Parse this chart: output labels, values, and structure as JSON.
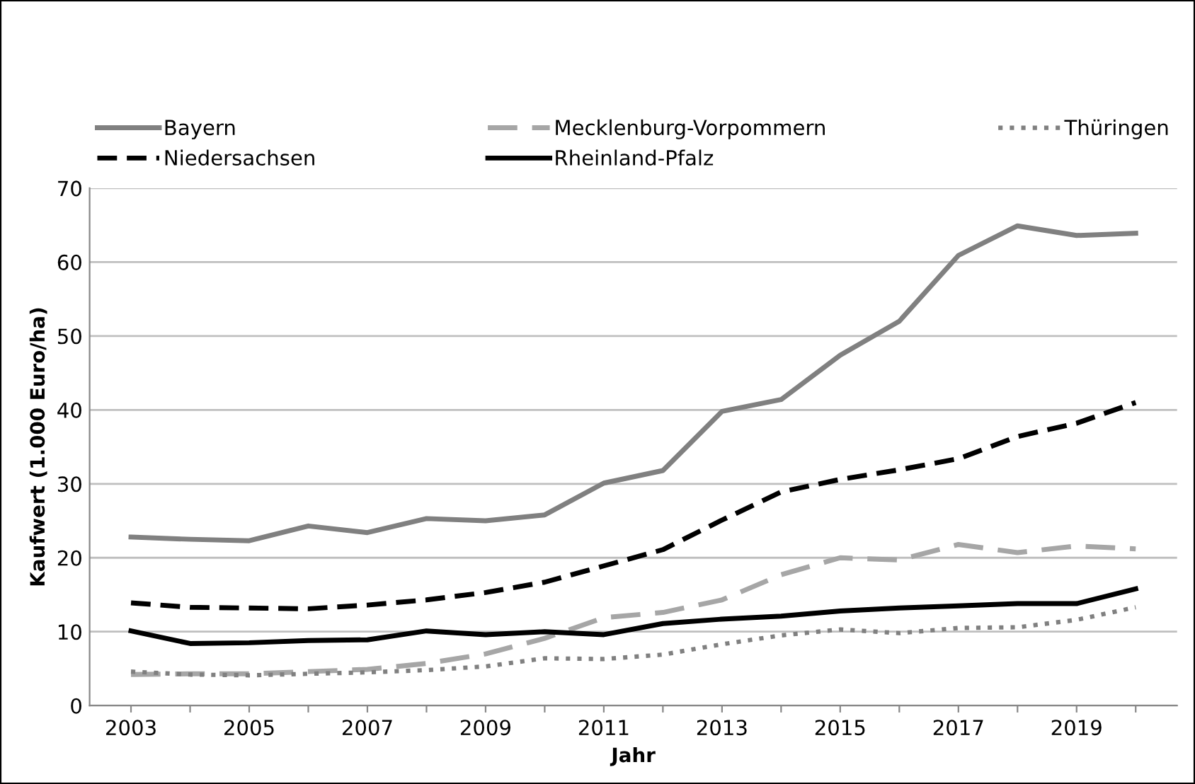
{
  "chart_data": {
    "type": "line",
    "xlabel": "Jahr",
    "ylabel": "Kaufwert (1.000 Euro/ha)",
    "categories": [
      "2003",
      null,
      "2005",
      null,
      "2007",
      null,
      "2009",
      null,
      "2011",
      null,
      "2013",
      null,
      "2015",
      null,
      "2017",
      null,
      "2019",
      null
    ],
    "ylim": [
      0,
      70
    ],
    "yticks": [
      0,
      10,
      20,
      30,
      40,
      50,
      60,
      70
    ],
    "grid": "y",
    "legend": "top",
    "marker": "none",
    "series": [
      {
        "name": "Bayern",
        "color": "#808080",
        "line_style": "solid",
        "values": [
          22.8,
          22.5,
          22.3,
          24.3,
          23.4,
          25.3,
          25.0,
          25.8,
          30.1,
          31.8,
          39.8,
          41.4,
          47.4,
          52.0,
          60.9,
          64.9,
          63.6,
          63.9
        ]
      },
      {
        "name": "Niedersachsen",
        "color": "#000000",
        "line_style": "dashed",
        "values": [
          13.9,
          13.3,
          13.2,
          13.1,
          13.6,
          14.3,
          15.3,
          16.7,
          18.9,
          21.1,
          25.1,
          28.9,
          30.6,
          31.9,
          33.4,
          36.4,
          38.2,
          41.0
        ]
      },
      {
        "name": "Mecklenburg-Vorpommern",
        "color": "#a6a6a6",
        "line_style": "dashed",
        "values": [
          4.2,
          4.3,
          4.3,
          4.6,
          4.9,
          5.7,
          7.0,
          9.1,
          11.9,
          12.6,
          14.3,
          17.7,
          20.0,
          19.7,
          21.8,
          20.7,
          21.6,
          21.2
        ]
      },
      {
        "name": "Rheinland-Pfalz",
        "color": "#000000",
        "line_style": "solid",
        "values": [
          10.1,
          8.4,
          8.5,
          8.8,
          8.9,
          10.1,
          9.6,
          10.0,
          9.6,
          11.1,
          11.7,
          12.1,
          12.8,
          13.2,
          13.5,
          13.8,
          13.8,
          15.8
        ]
      },
      {
        "name": "Thüringen",
        "color": "#808080",
        "line_style": "dotted",
        "values": [
          4.6,
          4.2,
          4.1,
          4.3,
          4.5,
          4.8,
          5.3,
          6.4,
          6.3,
          6.9,
          8.3,
          9.5,
          10.3,
          9.8,
          10.5,
          10.6,
          11.6,
          13.3
        ]
      }
    ]
  }
}
